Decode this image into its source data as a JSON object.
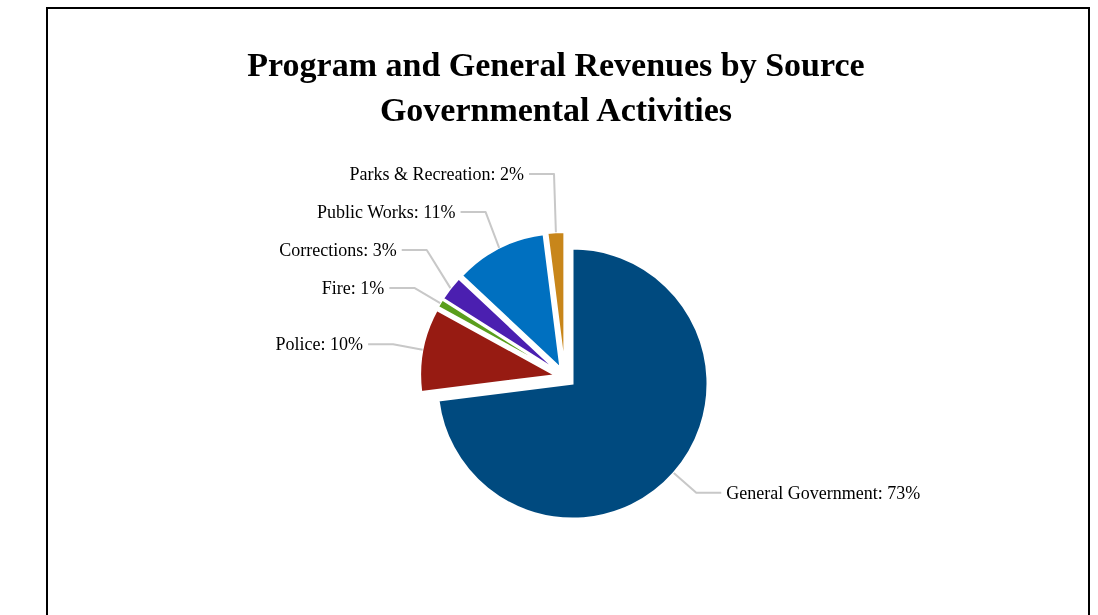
{
  "chart_data": {
    "type": "pie",
    "title": "Program and General Revenues by Source\nGovernmental Activities",
    "categories": [
      "General Government: 73%",
      "Police: 10%",
      "Fire: 1%",
      "Corrections: 3%",
      "Public Works: 11%",
      "Parks & Recreation: 2%"
    ],
    "values": [
      73,
      10,
      1,
      3,
      11,
      2
    ],
    "colors": [
      "#004a7f",
      "#971b12",
      "#5a9e1d",
      "#4b1fb0",
      "#0070c0",
      "#c8861a"
    ]
  }
}
